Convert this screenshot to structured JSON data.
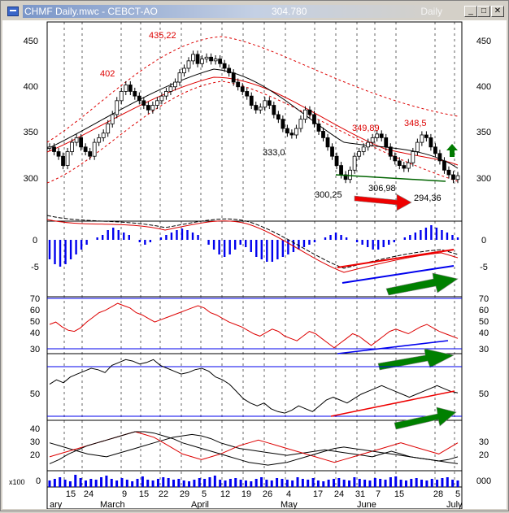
{
  "window": {
    "title": "CHMF Daily.mwc - CEBCT-AO",
    "last_price": "304.780",
    "period": "Daily",
    "buttons": {
      "minimize": "_",
      "maximize": "□",
      "close": "✕"
    }
  },
  "colors": {
    "red": "#dd0000",
    "blue": "#0000ee",
    "green": "#007a00",
    "black": "#000000"
  },
  "price_panel": {
    "y_ticks": [
      "450",
      "400",
      "350",
      "300"
    ],
    "annotations": [
      "402",
      "435,22",
      "333,0",
      "349,89",
      "348,5",
      "300,25",
      "306,98",
      "294,36"
    ]
  },
  "macd_panel": {
    "y_ticks": [
      "0",
      "-5"
    ]
  },
  "rsi_panel": {
    "y_ticks": [
      "70",
      "60",
      "50",
      "40",
      "30"
    ]
  },
  "stoch_panel": {
    "y_ticks": [
      "50"
    ]
  },
  "adx_panel": {
    "y_ticks": [
      "40",
      "30",
      "20"
    ]
  },
  "volume_panel": {
    "scale_label": "x100",
    "y_ticks": [
      "0",
      "000"
    ]
  },
  "x_axis": {
    "day_labels": [
      "15",
      "24",
      "9",
      "15",
      "22",
      "29",
      "5",
      "12",
      "19",
      "26",
      "4",
      "17",
      "24",
      "31",
      "7",
      "15",
      "28",
      "5"
    ],
    "month_labels": [
      "ary",
      "March",
      "April",
      "May",
      "June",
      "July"
    ]
  },
  "chart_data": [
    {
      "type": "candlestick",
      "title": "",
      "ylim": [
        270,
        470
      ],
      "close": [
        335,
        330,
        325,
        315,
        330,
        340,
        345,
        335,
        330,
        325,
        340,
        345,
        350,
        360,
        370,
        385,
        395,
        402,
        395,
        390,
        385,
        380,
        375,
        380,
        385,
        390,
        395,
        400,
        405,
        415,
        420,
        428,
        435,
        425,
        430,
        432,
        428,
        430,
        425,
        420,
        415,
        405,
        400,
        395,
        390,
        380,
        375,
        378,
        385,
        380,
        370,
        365,
        355,
        350,
        348,
        355,
        365,
        375,
        370,
        360,
        352,
        345,
        335,
        325,
        315,
        305,
        300,
        310,
        325,
        330,
        335,
        340,
        345,
        349,
        345,
        335,
        325,
        320,
        315,
        312,
        318,
        330,
        340,
        348,
        345,
        335,
        328,
        320,
        310,
        305,
        300,
        304
      ],
      "bollinger_mid": "declining from ~435 (April) to ~310 (July)",
      "bollinger_upper_dashed": "~345 to ~465 to ~340",
      "bollinger_lower_dashed": "~300 to ~400 to ~280"
    },
    {
      "type": "histogram+line",
      "name": "MACD",
      "ylim": [
        -8,
        4
      ],
      "values": [
        -4,
        -5,
        -5.5,
        -5,
        -4,
        -3,
        -2,
        -1,
        0,
        0.5,
        1,
        2,
        2.5,
        2,
        1.5,
        1,
        0,
        -0.5,
        -1,
        -0.5,
        0,
        0.5,
        1,
        1.5,
        2,
        2.3,
        2,
        1.5,
        1,
        0,
        -1,
        -2,
        -3,
        -3.5,
        -3,
        -2,
        -1,
        -1.5,
        -2.5,
        -3.5,
        -4,
        -4.5,
        -4.5,
        -4,
        -3.5,
        -3,
        -2.5,
        -2,
        -1.5,
        -1,
        -0.5,
        0,
        0.5,
        1,
        1.5,
        1,
        0.5,
        0,
        -0.5,
        -1,
        -1.5,
        -2,
        -2,
        -1.5,
        -1,
        -0.5,
        0,
        0.5,
        1,
        1.5,
        2,
        2.5,
        3,
        2.5,
        2,
        1.5,
        1,
        0.5
      ],
      "trendlines": [
        "red rising (price higher lows)",
        "blue rising (divergence)"
      ]
    },
    {
      "type": "line",
      "name": "RSI",
      "ylim": [
        25,
        75
      ],
      "levels": [
        70,
        30
      ],
      "values": [
        50,
        52,
        48,
        45,
        44,
        47,
        52,
        56,
        60,
        62,
        65,
        68,
        66,
        64,
        60,
        58,
        55,
        52,
        54,
        56,
        58,
        60,
        62,
        64,
        66,
        64,
        60,
        58,
        55,
        52,
        50,
        48,
        45,
        42,
        40,
        43,
        46,
        44,
        40,
        38,
        36,
        40,
        44,
        42,
        38,
        34,
        30,
        34,
        38,
        42,
        40,
        36,
        32,
        36,
        40,
        44,
        46,
        44,
        42,
        45,
        48,
        50,
        47,
        44,
        42,
        40,
        38
      ]
    },
    {
      "type": "line",
      "name": "Stochastic",
      "ylim": [
        30,
        75
      ],
      "values": [
        55,
        58,
        56,
        60,
        62,
        64,
        66,
        65,
        63,
        68,
        70,
        72,
        71,
        69,
        70,
        72,
        68,
        66,
        64,
        62,
        63,
        65,
        66,
        64,
        60,
        58,
        55,
        50,
        45,
        42,
        40,
        42,
        38,
        36,
        35,
        37,
        40,
        38,
        36,
        40,
        44,
        46,
        44,
        42,
        45,
        48,
        50,
        52,
        54,
        52,
        50,
        48,
        46,
        48,
        50,
        52,
        54,
        52,
        50,
        49
      ]
    },
    {
      "type": "line",
      "name": "ADX/DMI",
      "ylim": [
        10,
        45
      ],
      "series": [
        {
          "values": [
            30,
            28,
            26,
            24,
            22,
            21,
            20,
            22,
            24,
            26,
            28,
            30,
            32,
            34,
            35,
            36,
            35,
            33,
            30,
            28,
            26,
            25,
            24,
            23,
            22,
            21,
            22,
            23,
            24,
            25,
            24,
            23,
            22,
            21,
            20,
            22,
            24,
            22,
            20,
            19,
            18,
            17,
            18,
            20
          ]
        },
        {
          "values": [
            20,
            22,
            24,
            26,
            28,
            30,
            32,
            34,
            36,
            38,
            36,
            34,
            30,
            26,
            22,
            20,
            18,
            20,
            22,
            25,
            28,
            30,
            32,
            30,
            28,
            26,
            24,
            22,
            20,
            18,
            16,
            18,
            20,
            22,
            24,
            26,
            28,
            30,
            28,
            26,
            24,
            22,
            26,
            30
          ]
        },
        {
          "values": [
            15,
            18,
            22,
            25,
            28,
            30,
            32,
            34,
            36,
            38,
            38,
            37,
            35,
            33,
            30,
            28,
            26,
            24,
            22,
            20,
            18,
            16,
            15,
            14,
            15,
            16,
            18,
            20,
            22,
            24,
            26,
            27,
            26,
            25,
            24,
            23,
            22,
            21,
            20,
            19,
            18,
            17,
            16,
            15
          ]
        }
      ]
    },
    {
      "type": "bar",
      "name": "Volume",
      "values": [
        8,
        10,
        12,
        9,
        7,
        15,
        11,
        8,
        10,
        9,
        12,
        14,
        10,
        8,
        11,
        9,
        7,
        10,
        13,
        9,
        8,
        10,
        12,
        11,
        9,
        10,
        8,
        7,
        9,
        11,
        10,
        12,
        14,
        9,
        8,
        10,
        11,
        9,
        8,
        7,
        10,
        12,
        9,
        8,
        11,
        10,
        9,
        8,
        12,
        10,
        9,
        11,
        8,
        7,
        9,
        10,
        11,
        9,
        8,
        12,
        10,
        9,
        8,
        11,
        10,
        9,
        12,
        13,
        9,
        8,
        10,
        11,
        9,
        8,
        10,
        9,
        11,
        12,
        9,
        8
      ]
    }
  ]
}
